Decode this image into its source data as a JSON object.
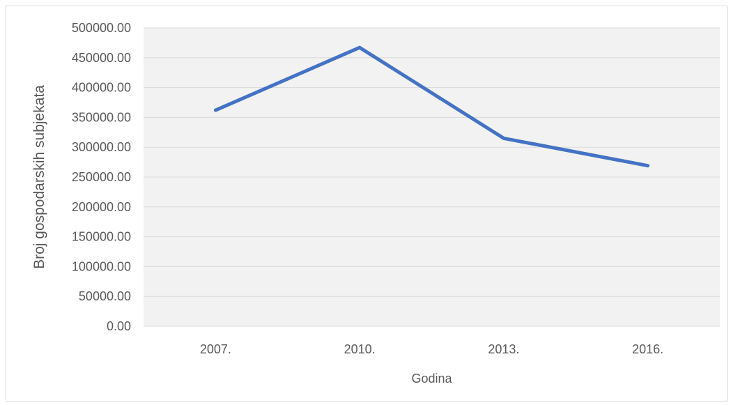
{
  "chart_data": {
    "type": "line",
    "title": "",
    "xlabel": "Godina",
    "ylabel": "Broj gospodarskih subjekata",
    "categories": [
      "2007.",
      "2010.",
      "2013.",
      "2016."
    ],
    "series": [
      {
        "values": [
          362000,
          467000,
          315000,
          269000
        ],
        "color": "#4472c4"
      }
    ],
    "ylim": [
      0,
      500000
    ],
    "yticks": [
      "0.00",
      "50000.00",
      "100000.00",
      "150000.00",
      "200000.00",
      "250000.00",
      "300000.00",
      "350000.00",
      "400000.00",
      "450000.00",
      "500000.00"
    ],
    "grid": true,
    "legend": "none",
    "colors": {
      "plot_background": "#f2f2f2",
      "gridline": "#d9d9d9",
      "text": "#595959"
    }
  }
}
